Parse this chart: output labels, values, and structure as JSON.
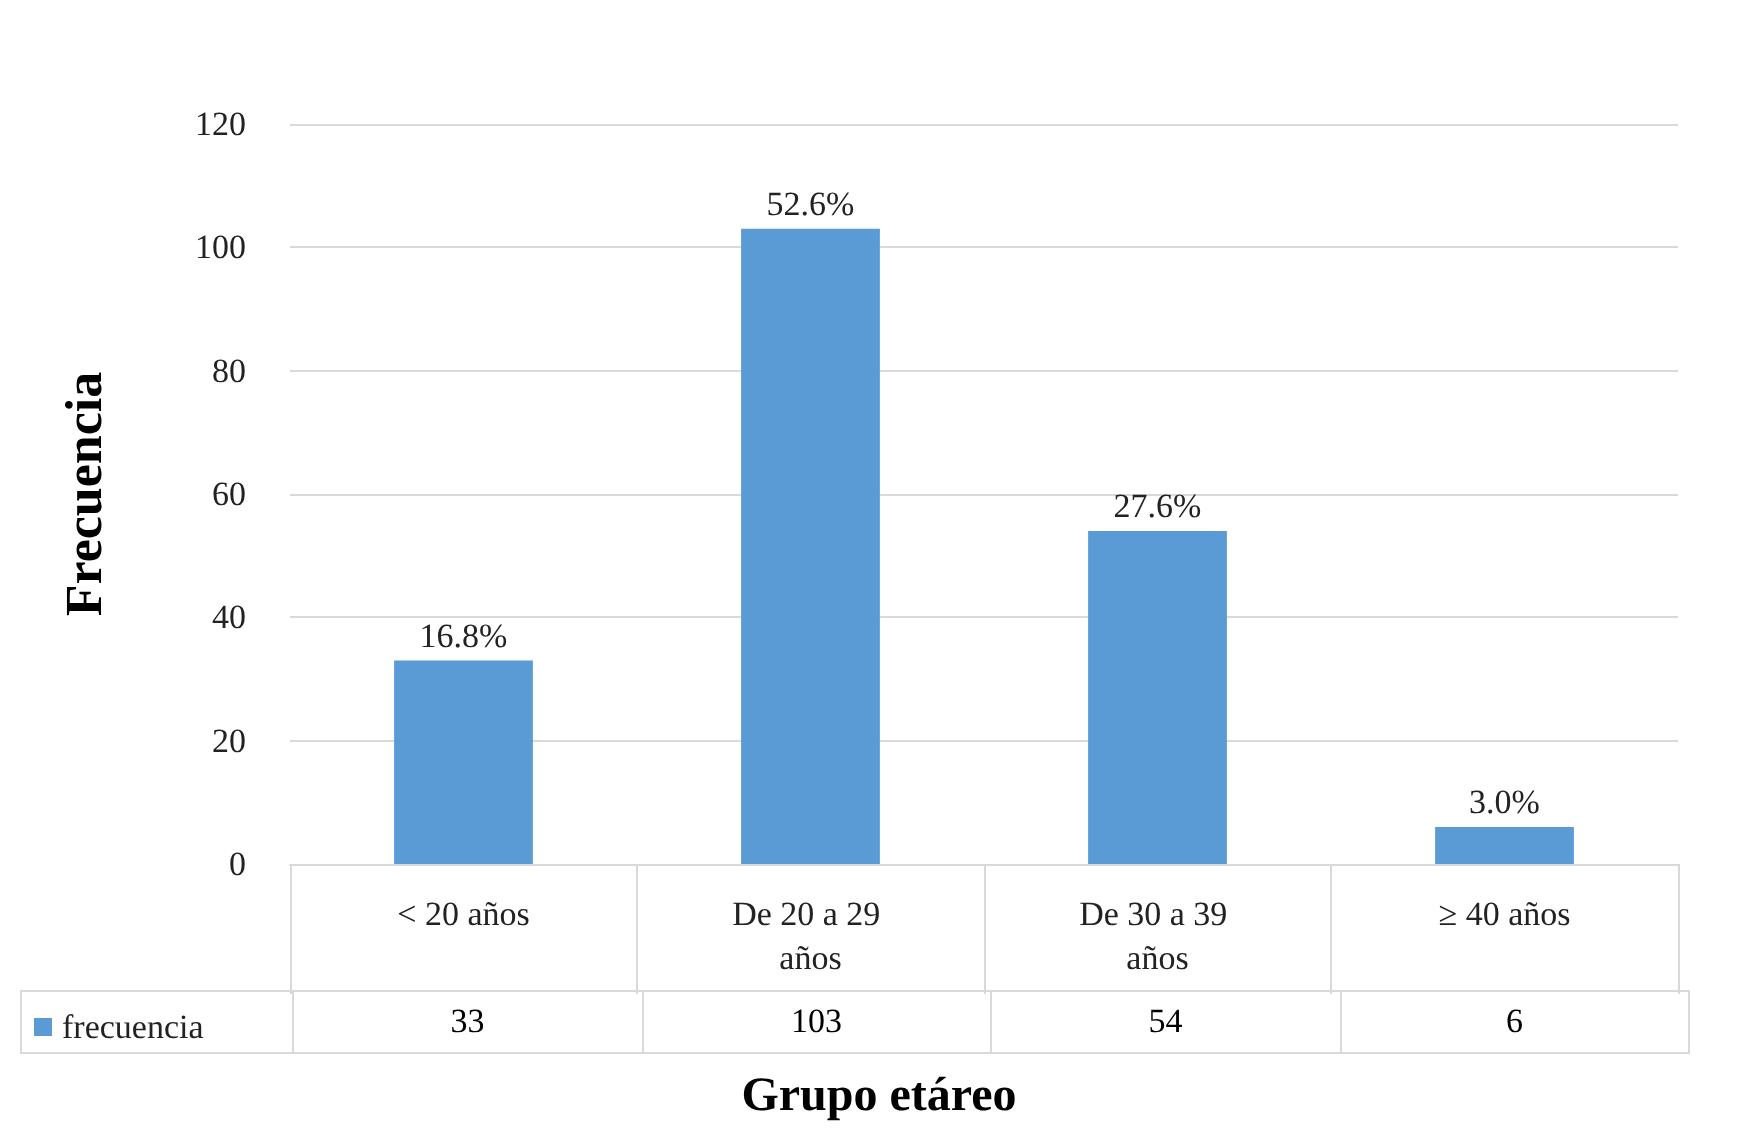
{
  "chart_data": {
    "type": "bar",
    "xlabel": "Grupo etáreo",
    "ylabel": "Frecuencia",
    "categories": [
      "< 20 años",
      "De 20 a 29 años",
      "De 30 a 39 años",
      "≥ 40 años"
    ],
    "series": [
      {
        "name": "frecuencia",
        "color": "#5b9bd5",
        "values": [
          33,
          103,
          54,
          6
        ],
        "value_labels": [
          "33",
          "103",
          "54",
          "6"
        ]
      }
    ],
    "annotations": [
      {
        "text": "16.8%",
        "x": "< 20 años",
        "y": 33
      },
      {
        "text": "52.6%",
        "x": "De 20 a 29 años",
        "y": 103
      },
      {
        "text": "27.6%",
        "x": "De 30 a 39 años",
        "y": 54
      },
      {
        "text": "3.0%",
        "x": "≥ 40 años",
        "y": 6
      }
    ],
    "ylim": [
      0,
      120
    ],
    "yticks": [
      0,
      20,
      40,
      60,
      80,
      100,
      120
    ],
    "grid": "y",
    "legend": "bottom"
  }
}
